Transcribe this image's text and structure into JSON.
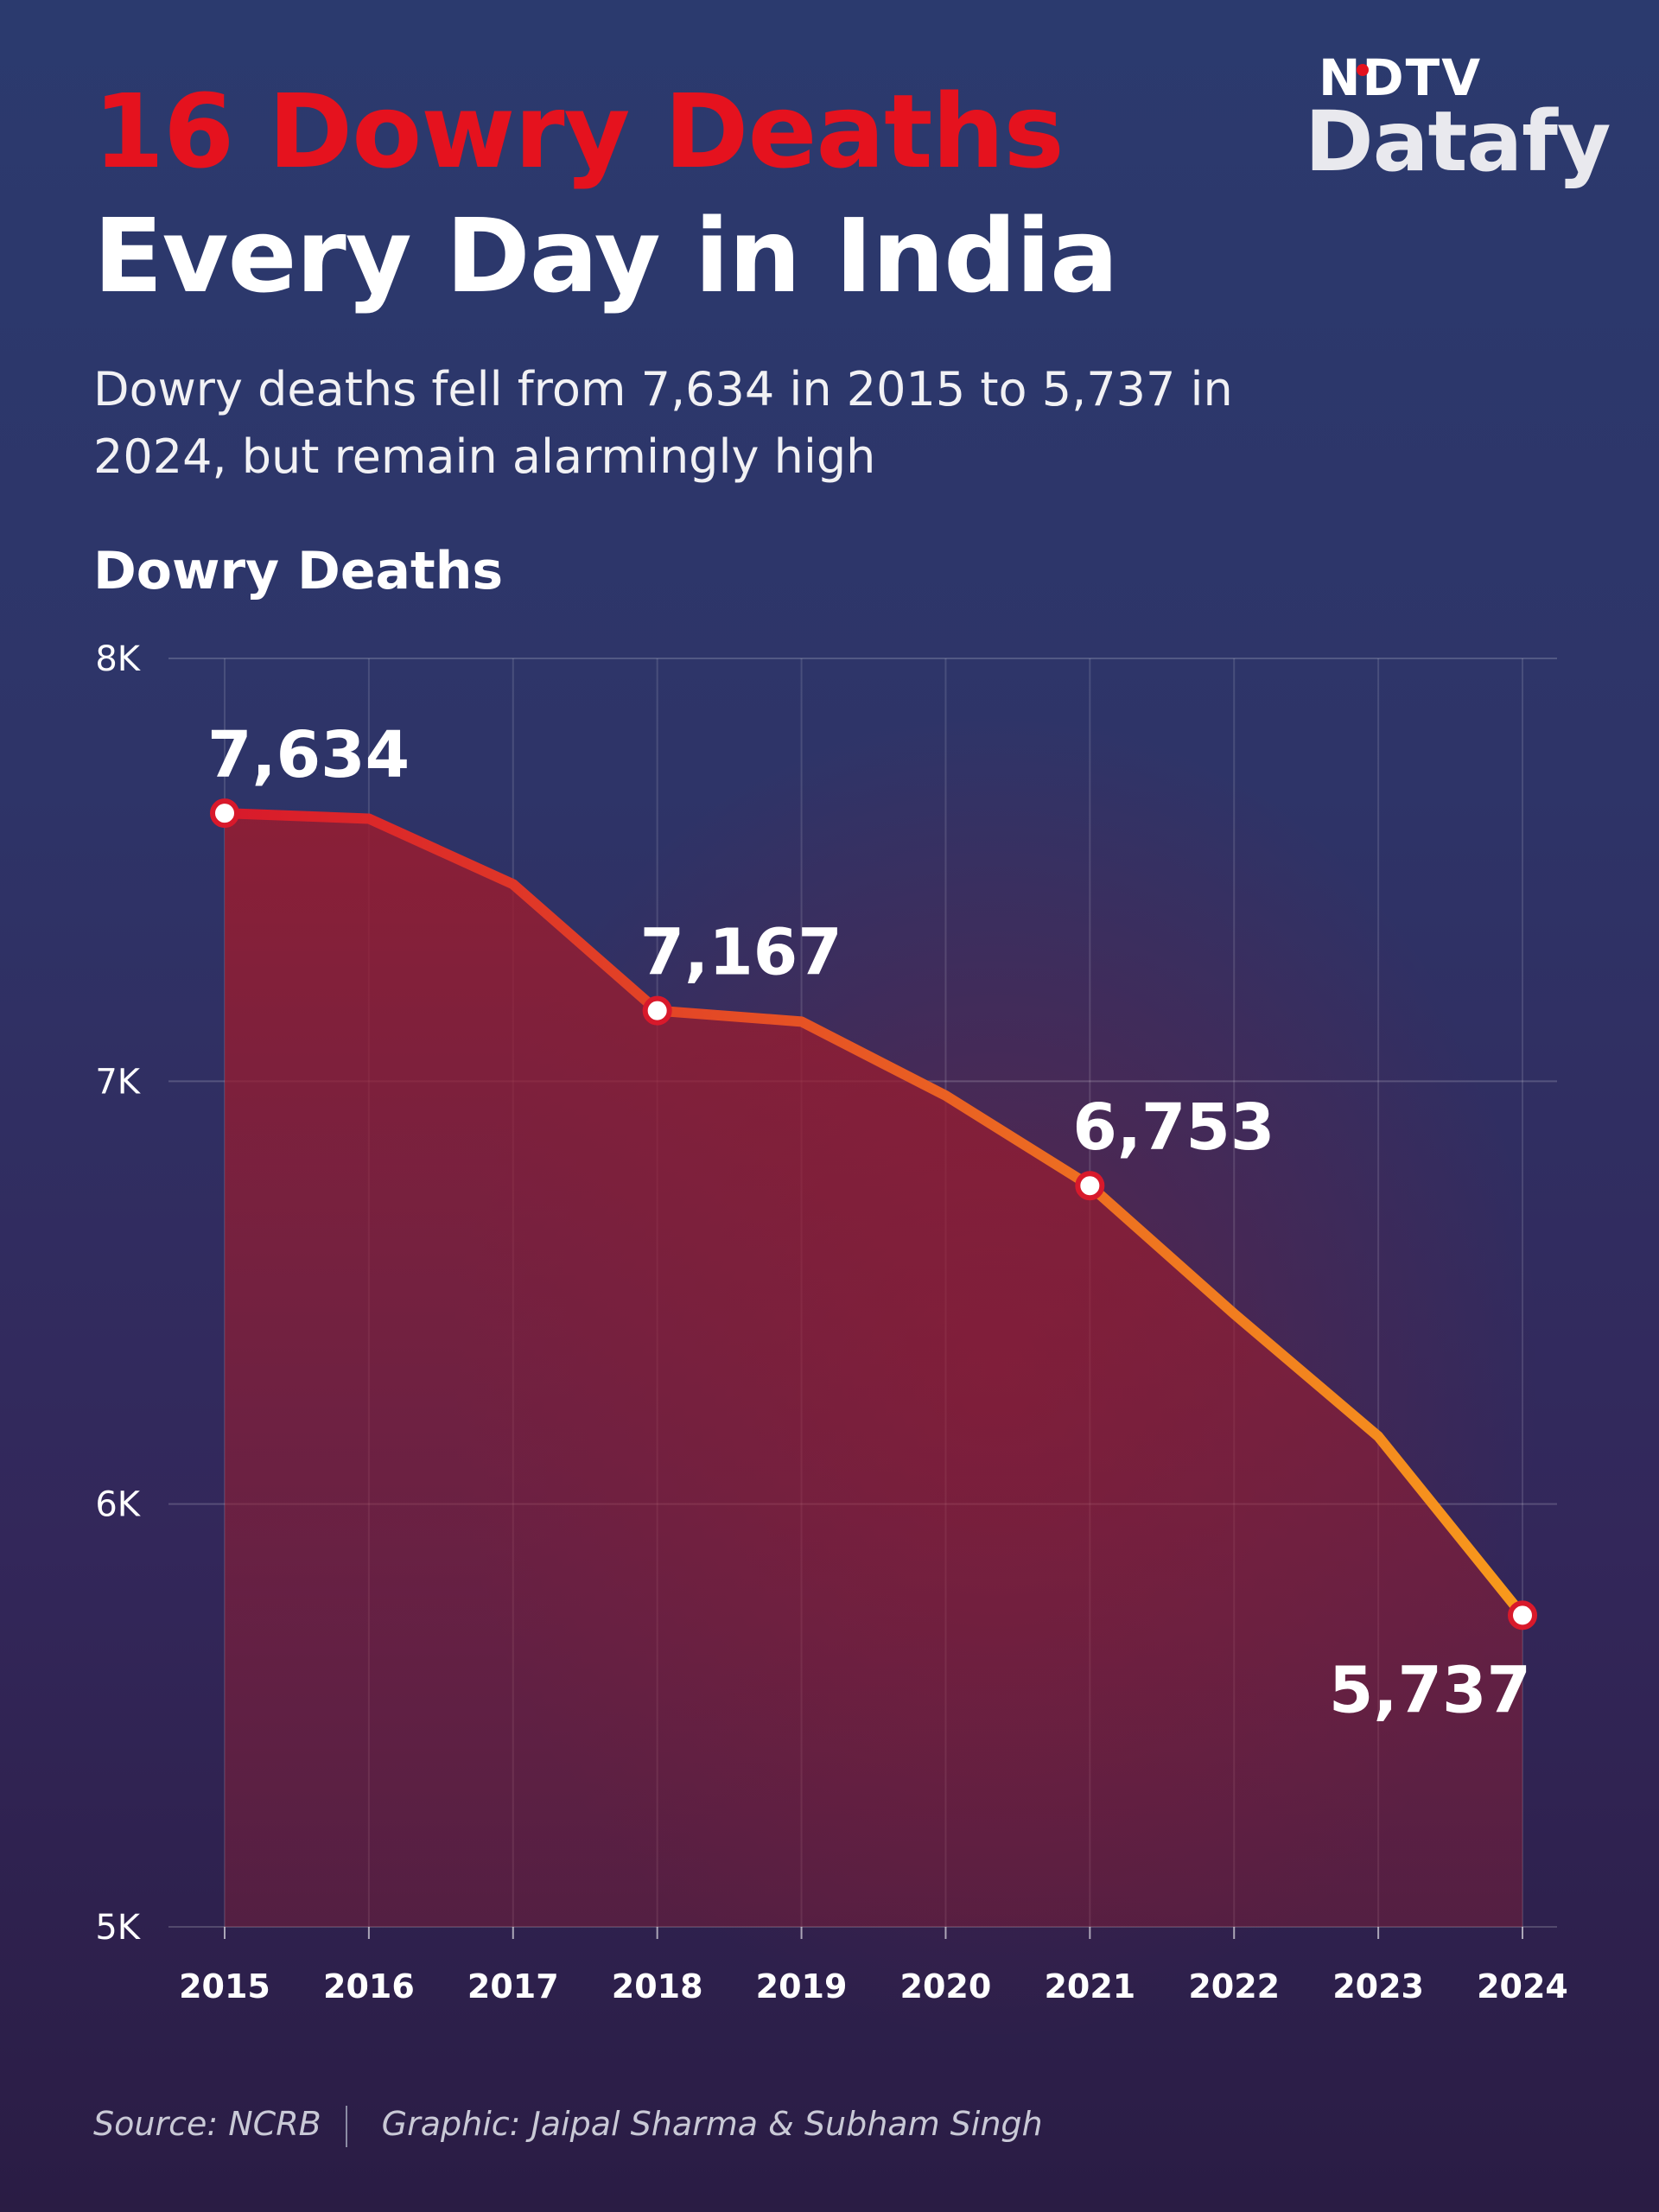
{
  "header": {
    "title_red": "16 Dowry Deaths",
    "title_white": "Every Day in India",
    "subtitle": "Dowry deaths fell from 7,634 in 2015 to 5,737 in 2024, but remain alarmingly high",
    "chart_heading": "Dowry Deaths"
  },
  "logo": {
    "top": "NDTV",
    "bottom": "Datafy"
  },
  "footer": {
    "source": "Source: NCRB",
    "credit": "Graphic: Jaipal Sharma & Subham Singh"
  },
  "colors": {
    "title_red": "#e5121e",
    "line_start": "#d8192b",
    "line_end": "#f89a1c",
    "area_fill": "#9a1b2e",
    "background": "#2e3468"
  },
  "chart_data": {
    "type": "line",
    "title": "Dowry Deaths",
    "xlabel": "",
    "ylabel": "",
    "x": [
      "2015",
      "2016",
      "2017",
      "2018",
      "2019",
      "2020",
      "2021",
      "2022",
      "2023",
      "2024"
    ],
    "series": [
      {
        "values": [
          7634,
          7621,
          7466,
          7167,
          7141,
          6966,
          6753,
          6450,
          6160,
          5737
        ]
      }
    ],
    "ylim": [
      5000,
      8000
    ],
    "yticks": [
      5000,
      6000,
      7000,
      8000
    ],
    "ytick_labels": [
      "5K",
      "6K",
      "7K",
      "8K"
    ],
    "highlighted": [
      {
        "x": "2015",
        "label": "7,634"
      },
      {
        "x": "2018",
        "label": "7,167"
      },
      {
        "x": "2021",
        "label": "6,753"
      },
      {
        "x": "2024",
        "label": "5,737"
      }
    ],
    "grid": true,
    "legend": "none"
  }
}
